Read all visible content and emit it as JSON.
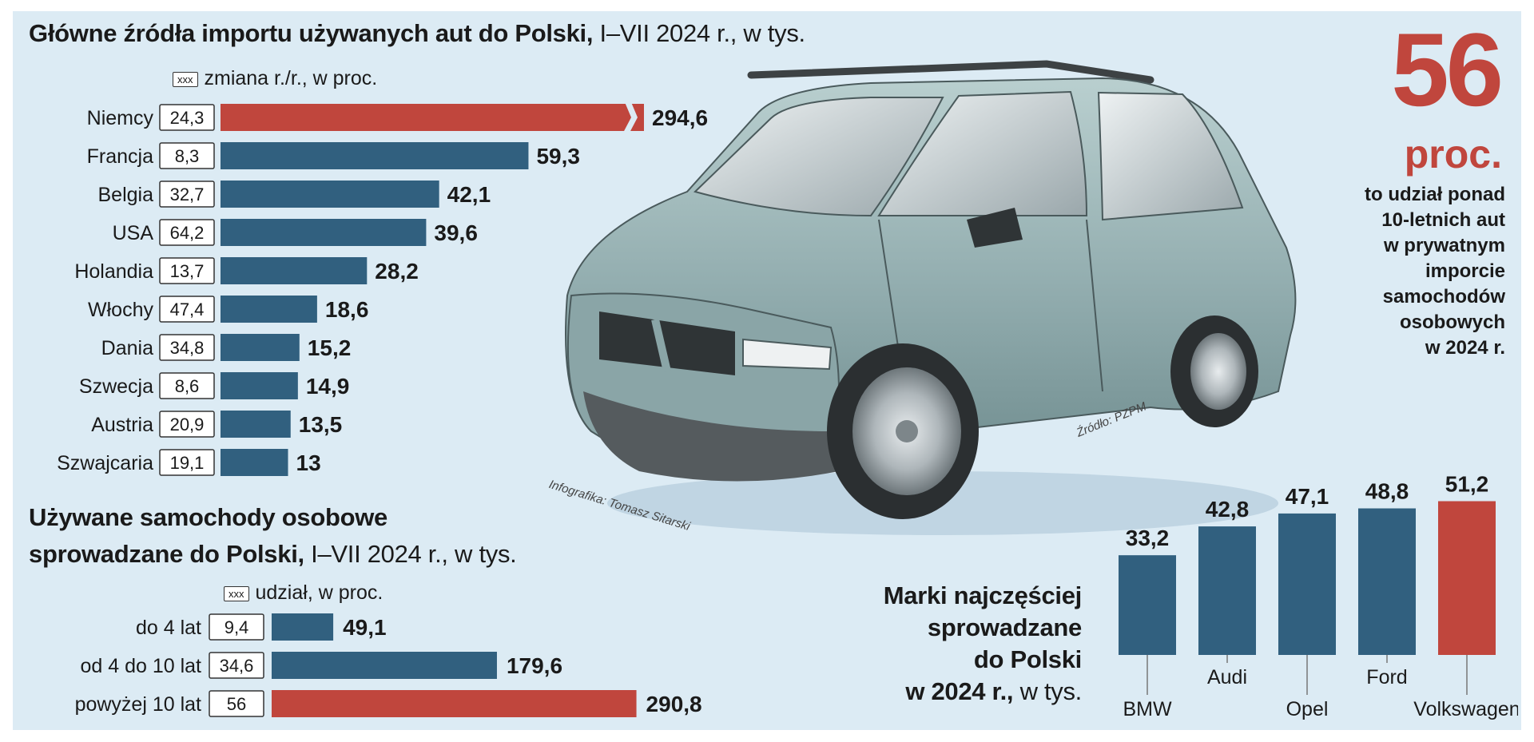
{
  "chart_data": [
    {
      "type": "bar",
      "orientation": "horizontal",
      "title": "Główne źródła importu używanych aut do Polski,",
      "title_suffix": "I–VII 2024 r., w tys.",
      "legend_box": "xxx",
      "legend_text": "zmiana r./r., w proc.",
      "categories": [
        "Niemcy",
        "Francja",
        "Belgia",
        "USA",
        "Holandia",
        "Włochy",
        "Dania",
        "Szwecja",
        "Austria",
        "Szwajcaria"
      ],
      "values": [
        294.6,
        59.3,
        42.1,
        39.6,
        28.2,
        18.6,
        15.2,
        14.9,
        13.5,
        13
      ],
      "value_labels": [
        "294,6",
        "59,3",
        "42,1",
        "39,6",
        "28,2",
        "18,6",
        "15,2",
        "14,9",
        "13,5",
        "13"
      ],
      "changes": [
        "24,3",
        "8,3",
        "32,7",
        "64,2",
        "13,7",
        "47,4",
        "34,8",
        "8,6",
        "20,9",
        "19,1"
      ],
      "highlight_index": 0,
      "broken_axis_on": "Niemcy"
    },
    {
      "type": "bar",
      "orientation": "horizontal",
      "title_line1": "Używane samochody osobowe",
      "title_line2": "sprowadzane do Polski,",
      "title_suffix": "I–VII 2024 r., w tys.",
      "legend_box": "xxx",
      "legend_text": "udział, w proc.",
      "categories": [
        "do 4 lat",
        "od 4 do 10 lat",
        "powyżej 10 lat"
      ],
      "values": [
        49.1,
        179.6,
        290.8
      ],
      "value_labels": [
        "49,1",
        "179,6",
        "290,8"
      ],
      "shares": [
        "9,4",
        "34,6",
        "56"
      ],
      "highlight_index": 2
    },
    {
      "type": "bar",
      "orientation": "vertical",
      "title_lines": [
        "Marki najczęściej",
        "sprowadzane",
        "do Polski"
      ],
      "title_last_bold": "w 2024 r.,",
      "title_suffix": "w tys.",
      "categories": [
        "BMW",
        "Audi",
        "Opel",
        "Ford",
        "Volkswagen"
      ],
      "values": [
        33.2,
        42.8,
        47.1,
        48.8,
        51.2
      ],
      "value_labels": [
        "33,2",
        "42,8",
        "47,1",
        "48,8",
        "51,2"
      ],
      "highlight_index": 4
    }
  ],
  "callout": {
    "number": "56",
    "unit": "proc.",
    "lines": [
      "to udział ponad",
      "10-letnich aut",
      "w prywatnym",
      "imporcie",
      "samochodów",
      "osobowych",
      "w 2024 r."
    ]
  },
  "credits": {
    "source": "Źródło: PZPM",
    "author": "Infografika: Tomasz Sitarski"
  },
  "colors": {
    "bar": "#31607f",
    "highlight": "#c0463d",
    "background": "#dcebf4"
  },
  "illustration": "minivan-illustration"
}
